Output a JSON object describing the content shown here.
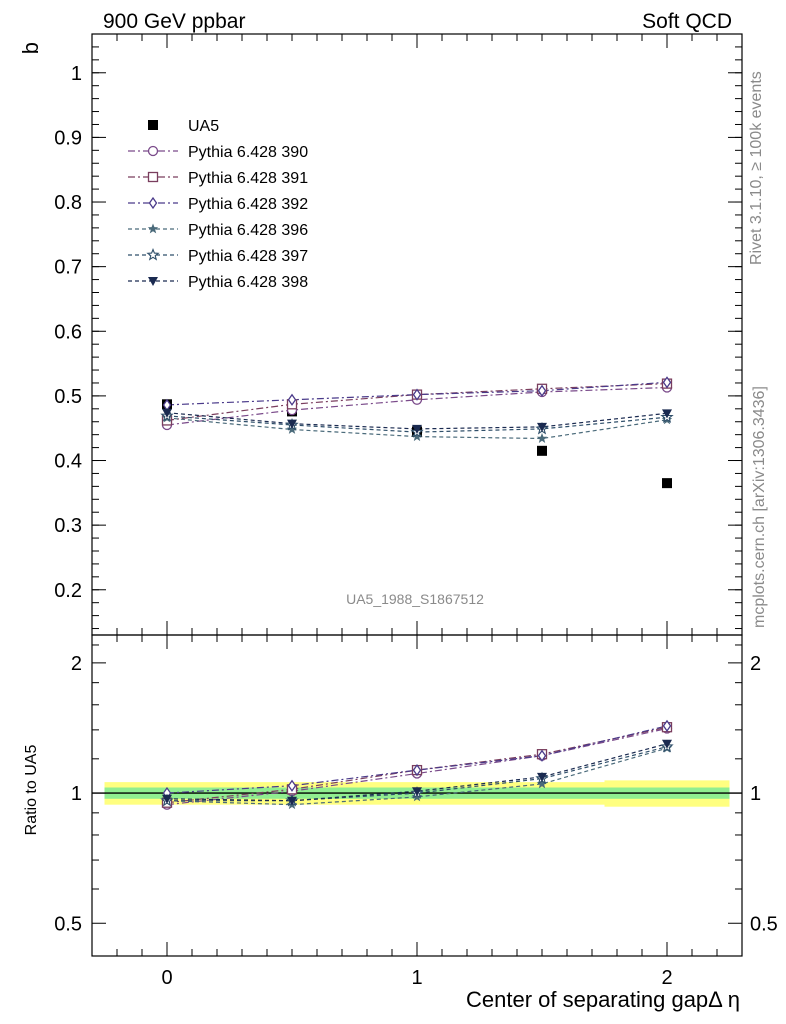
{
  "header": {
    "left": "900 GeV ppbar",
    "right": "Soft QCD"
  },
  "side_labels": {
    "top": "Rivet 3.1.10, ≥ 100k events",
    "bottom": "mcplots.cern.ch [arXiv:1306.3436]"
  },
  "watermark": "UA5_1988_S1867512",
  "colors": {
    "p390": "#7a4a8a",
    "p391": "#7a3e5e",
    "p392": "#4a3a8a",
    "p396": "#4a6a7a",
    "p397": "#2f4f6a",
    "p398": "#1a2a50",
    "band_inner": "#90ee90",
    "band_outer": "#ffff80"
  },
  "chart_data": [
    {
      "type": "scatter",
      "panel": "main",
      "ylabel": "b",
      "xlabel": "",
      "xlim": [
        -0.3,
        2.3
      ],
      "ylim": [
        0.13,
        1.06
      ],
      "yticks": [
        0.2,
        0.3,
        0.4,
        0.5,
        0.6,
        0.7,
        0.8,
        0.9,
        1
      ],
      "ytick_labels": [
        "0.2",
        "0.3",
        "0.4",
        "0.5",
        "0.6",
        "0.7",
        "0.8",
        "0.9",
        "1"
      ],
      "legend_position": "top-left",
      "x": [
        0,
        0.5,
        1,
        1.5,
        2
      ],
      "series": [
        {
          "name": "UA5",
          "marker": "filled-square",
          "style": "none",
          "color": "#000000",
          "values": [
            0.487,
            0.476,
            0.445,
            0.415,
            0.365
          ]
        },
        {
          "name": "Pythia 6.428 390",
          "marker": "open-circle",
          "style": "dashdot",
          "color": "#7a4a8a",
          "values": [
            0.455,
            0.478,
            0.494,
            0.506,
            0.513
          ]
        },
        {
          "name": "Pythia 6.428 391",
          "marker": "open-square",
          "style": "dashdot",
          "color": "#7a3e5e",
          "values": [
            0.462,
            0.487,
            0.502,
            0.511,
            0.519
          ]
        },
        {
          "name": "Pythia 6.428 392",
          "marker": "open-diamond",
          "style": "dashdot",
          "color": "#4a3a8a",
          "values": [
            0.486,
            0.494,
            0.502,
            0.508,
            0.521
          ]
        },
        {
          "name": "Pythia 6.428 396",
          "marker": "filled-star",
          "style": "dashed",
          "color": "#4a6a7a",
          "values": [
            0.466,
            0.448,
            0.437,
            0.434,
            0.463
          ]
        },
        {
          "name": "Pythia 6.428 397",
          "marker": "open-star",
          "style": "dashed",
          "color": "#2f4f6a",
          "values": [
            0.469,
            0.455,
            0.444,
            0.449,
            0.467
          ]
        },
        {
          "name": "Pythia 6.428 398",
          "marker": "filled-triangle-down",
          "style": "dashed",
          "color": "#1a2a50",
          "values": [
            0.474,
            0.457,
            0.449,
            0.452,
            0.473
          ]
        }
      ]
    },
    {
      "type": "scatter",
      "panel": "ratio",
      "ylabel": "Ratio to UA5",
      "xlabel": "Center of separating gapΔ η",
      "xlim": [
        -0.3,
        2.3
      ],
      "ylim": [
        0.42,
        2.32
      ],
      "yscale": "log",
      "yticks": [
        0.5,
        1,
        2
      ],
      "ytick_labels": [
        "0.5",
        "1",
        "2"
      ],
      "xticks": [
        0,
        1,
        2
      ],
      "xtick_labels": [
        "0",
        "1",
        "2"
      ],
      "x": [
        0,
        0.5,
        1,
        1.5,
        2
      ],
      "band_edges": [
        -0.25,
        0.25,
        0.75,
        1.25,
        1.75,
        2.25
      ],
      "band_inner": [
        0.03,
        0.03,
        0.03,
        0.03,
        0.03
      ],
      "band_outer": [
        0.06,
        0.06,
        0.06,
        0.06,
        0.07
      ],
      "series": [
        {
          "name": "Pythia 6.428 390",
          "values": [
            0.94,
            1.01,
            1.11,
            1.22,
            1.41
          ]
        },
        {
          "name": "Pythia 6.428 391",
          "values": [
            0.95,
            1.02,
            1.13,
            1.23,
            1.42
          ]
        },
        {
          "name": "Pythia 6.428 392",
          "values": [
            1.0,
            1.04,
            1.13,
            1.22,
            1.43
          ]
        },
        {
          "name": "Pythia 6.428 396",
          "values": [
            0.96,
            0.94,
            0.98,
            1.05,
            1.27
          ]
        },
        {
          "name": "Pythia 6.428 397",
          "values": [
            0.96,
            0.96,
            1.0,
            1.08,
            1.28
          ]
        },
        {
          "name": "Pythia 6.428 398",
          "values": [
            0.97,
            0.96,
            1.01,
            1.09,
            1.3
          ]
        }
      ]
    }
  ]
}
